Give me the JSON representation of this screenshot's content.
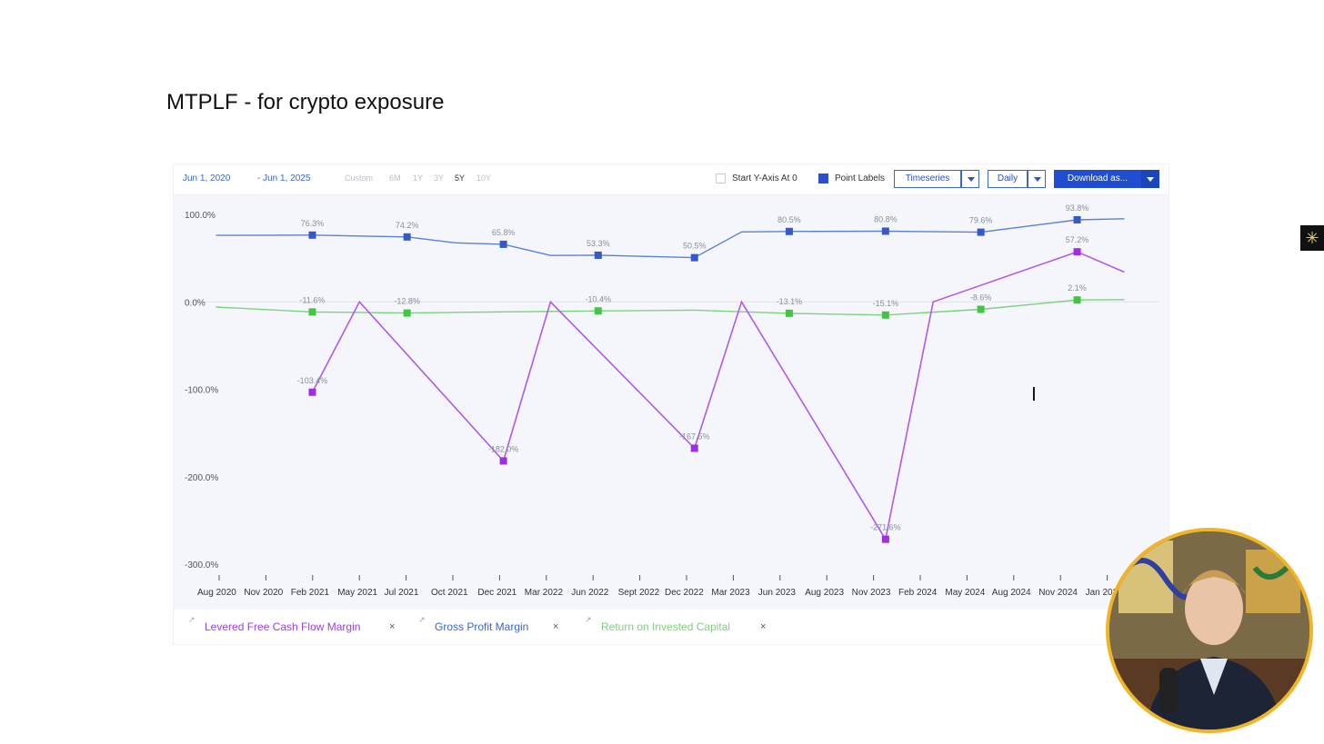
{
  "slide_title": "MTPLF - for crypto exposure",
  "toolbar": {
    "date_start": "Jun 1, 2020",
    "date_end": "- Jun 1, 2025",
    "ranges": [
      "Custom",
      "6M",
      "1Y",
      "3Y",
      "5Y",
      "10Y"
    ],
    "active_range": "5Y",
    "start_y_axis_label": "Start Y-Axis At 0",
    "start_y_axis_checked": false,
    "point_labels_label": "Point Labels",
    "point_labels_checked": true,
    "timeseries_label": "Timeseries",
    "daily_label": "Daily",
    "download_label": "Download as..."
  },
  "legend": [
    {
      "label": "Levered Free Cash Flow Margin",
      "color": "#a03de6",
      "close": "×"
    },
    {
      "label": "Gross Profit Margin",
      "color": "#3a67c8",
      "close": "×"
    },
    {
      "label": "Return on Invested Capital",
      "color": "#7ed07e",
      "close": "×"
    }
  ],
  "side_icon": "asterisk-icon",
  "chart_data": {
    "type": "line",
    "ylim": [
      -300,
      100
    ],
    "yticks": [
      "100.0%",
      "0.0%",
      "-100.0%",
      "-200.0%",
      "-300.0%"
    ],
    "ytick_values": [
      100,
      0,
      -100,
      -200,
      -300
    ],
    "xlabels": [
      "Aug 2020",
      "Nov 2020",
      "Feb 2021",
      "May 2021",
      "Jul 2021",
      "Oct 2021",
      "Dec 2021",
      "Mar 2022",
      "Jun 2022",
      "Sept 2022",
      "Dec 2022",
      "Mar 2023",
      "Jun 2023",
      "Aug 2023",
      "Nov 2023",
      "Feb 2024",
      "May 2024",
      "Aug 2024",
      "Nov 2024",
      "Jan 2025"
    ],
    "series": [
      {
        "name": "Gross Profit Margin",
        "color": "#5b80d8",
        "marker_color": "#3559c9",
        "points": [
          {
            "x": "2020-06-30",
            "y": 76.0,
            "label": ""
          },
          {
            "x": "2020-12-31",
            "y": 76.3,
            "label": "76.3%",
            "marker": true
          },
          {
            "x": "2021-06-30",
            "y": 74.2,
            "label": "74.2%",
            "marker": true
          },
          {
            "x": "2021-09-30",
            "y": 67.5
          },
          {
            "x": "2021-12-31",
            "y": 65.8,
            "label": "65.8%",
            "marker": true
          },
          {
            "x": "2022-03-31",
            "y": 53.0
          },
          {
            "x": "2022-06-30",
            "y": 53.3,
            "label": "53.3%",
            "marker": true
          },
          {
            "x": "2022-12-31",
            "y": 50.5,
            "label": "50.5%",
            "marker": true
          },
          {
            "x": "2023-03-31",
            "y": 80.0
          },
          {
            "x": "2023-06-30",
            "y": 80.5,
            "label": "80.5%",
            "marker": true
          },
          {
            "x": "2023-12-31",
            "y": 80.8,
            "label": "80.8%",
            "marker": true
          },
          {
            "x": "2024-06-30",
            "y": 79.6,
            "label": "79.6%",
            "marker": true
          },
          {
            "x": "2024-12-31",
            "y": 93.8,
            "label": "93.8%",
            "marker": true
          },
          {
            "x": "2025-03-31",
            "y": 95.0
          }
        ]
      },
      {
        "name": "Return on Invested Capital",
        "color": "#7ed07e",
        "marker_color": "#43c443",
        "points": [
          {
            "x": "2020-06-30",
            "y": -6.0
          },
          {
            "x": "2020-12-31",
            "y": -11.6,
            "label": "-11.6%",
            "marker": true
          },
          {
            "x": "2021-06-30",
            "y": -12.8,
            "label": "-12.8%",
            "marker": true
          },
          {
            "x": "2021-12-31",
            "y": -11.5
          },
          {
            "x": "2022-06-30",
            "y": -10.4,
            "label": "-10.4%",
            "marker": true
          },
          {
            "x": "2022-12-31",
            "y": -9.5
          },
          {
            "x": "2023-06-30",
            "y": -13.1,
            "label": "-13.1%",
            "marker": true
          },
          {
            "x": "2023-12-31",
            "y": -15.1,
            "label": "-15.1%",
            "marker": true
          },
          {
            "x": "2024-06-30",
            "y": -8.6,
            "label": "-8.6%",
            "marker": true
          },
          {
            "x": "2024-12-31",
            "y": 2.1,
            "label": "2.1%",
            "marker": true
          },
          {
            "x": "2025-03-31",
            "y": 2.5
          }
        ]
      },
      {
        "name": "Levered Free Cash Flow Margin",
        "color": "#b05ae8",
        "marker_color": "#a02de6",
        "points": [
          {
            "x": "2020-12-31",
            "y": -103.4,
            "label": "-103.4%",
            "marker": true
          },
          {
            "x": "2021-03-31",
            "y": 0
          },
          {
            "x": "2021-12-31",
            "y": -182.0,
            "label": "-182.0%",
            "marker": true
          },
          {
            "x": "2022-03-31",
            "y": 0
          },
          {
            "x": "2022-12-31",
            "y": -167.5,
            "label": "-167.5%",
            "marker": true
          },
          {
            "x": "2023-03-31",
            "y": 0
          },
          {
            "x": "2023-12-31",
            "y": -271.6,
            "label": "-271.6%",
            "marker": true
          },
          {
            "x": "2024-03-31",
            "y": 0
          },
          {
            "x": "2024-12-31",
            "y": 57.2,
            "label": "57.2%",
            "marker": true
          },
          {
            "x": "2025-03-31",
            "y": 34.0
          }
        ]
      }
    ]
  }
}
